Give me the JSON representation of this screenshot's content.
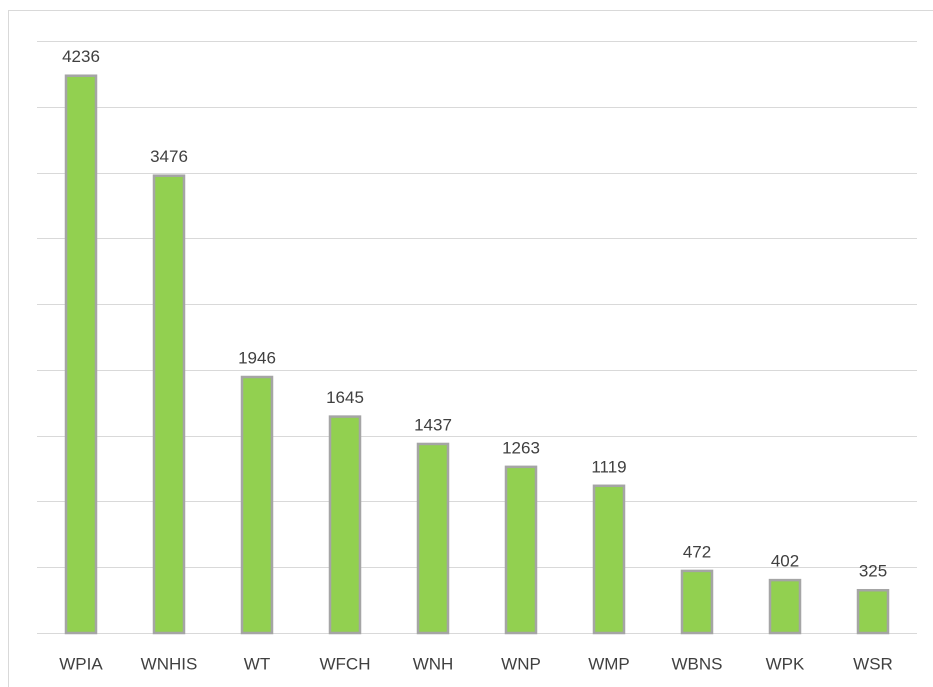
{
  "chart_data": {
    "type": "bar",
    "categories": [
      "WPIA",
      "WNHIS",
      "WT",
      "WFCH",
      "WNH",
      "WNP",
      "WMP",
      "WBNS",
      "WPK",
      "WSR"
    ],
    "values": [
      4236,
      3476,
      1946,
      1645,
      1437,
      1263,
      1119,
      472,
      402,
      325
    ],
    "color": "#92d050",
    "edge_color": "#a5a5a5",
    "ylim": [
      0,
      4500
    ],
    "yticks": [
      0,
      500,
      1000,
      1500,
      2000,
      2500,
      3000,
      3500,
      4000,
      4500
    ],
    "grid": true
  }
}
